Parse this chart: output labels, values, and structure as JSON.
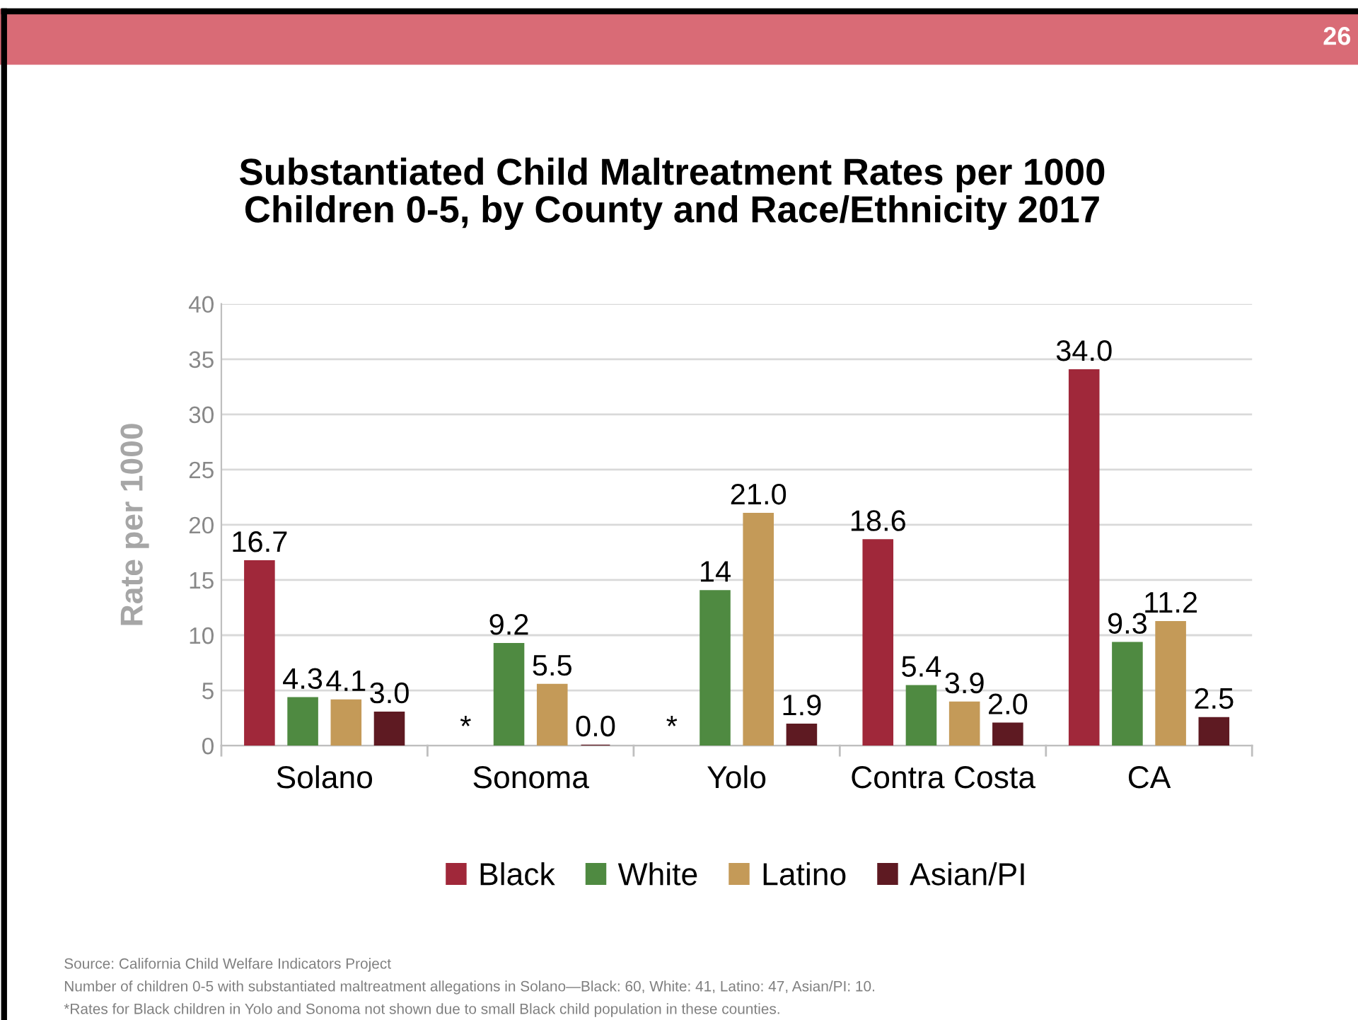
{
  "chart_data": {
    "type": "bar",
    "title": "Substantiated Child Maltreatment Rates per 1000\nChildren 0-5, by County and Race/Ethnicity 2017",
    "ylabel": "Rate per 1000",
    "categories": [
      "Solano",
      "Sonoma",
      "Yolo",
      "Contra Costa",
      "CA"
    ],
    "series": [
      {
        "name": "Black",
        "color": "#a0283a",
        "values": [
          16.7,
          null,
          null,
          18.6,
          34.0
        ],
        "value_labels": [
          "16.7",
          "*",
          "*",
          "18.6",
          "34.0"
        ]
      },
      {
        "name": "White",
        "color": "#4f8a41",
        "values": [
          4.3,
          9.2,
          14,
          5.4,
          9.3
        ],
        "value_labels": [
          "4.3",
          "9.2",
          "14",
          "5.4",
          "9.3"
        ]
      },
      {
        "name": "Latino",
        "color": "#c49a58",
        "values": [
          4.1,
          5.5,
          21.0,
          3.9,
          11.2
        ],
        "value_labels": [
          "4.1",
          "5.5",
          "21.0",
          "3.9",
          "11.2"
        ]
      },
      {
        "name": "Asian/PI",
        "color": "#5e1a22",
        "values": [
          3.0,
          0.0,
          1.9,
          2.0,
          2.5
        ],
        "value_labels": [
          "3.0",
          "0.0",
          "1.9",
          "2.0",
          "2.5"
        ]
      }
    ],
    "ylim": [
      0,
      40
    ],
    "yticks": [
      0,
      5,
      10,
      15,
      20,
      25,
      30,
      35,
      40
    ],
    "grid": "y",
    "legend": "bottom",
    "annotations": [
      "26",
      "Source: California Child Welfare Indicators Project",
      "Number of children 0-5 with substantiated maltreatment allegations in Solano—Black: 60, White: 41, Latino: 47, Asian/PI: 10.",
      "*Rates for Black children in Yolo and Sonoma not shown due to small Black child population in these counties."
    ]
  }
}
